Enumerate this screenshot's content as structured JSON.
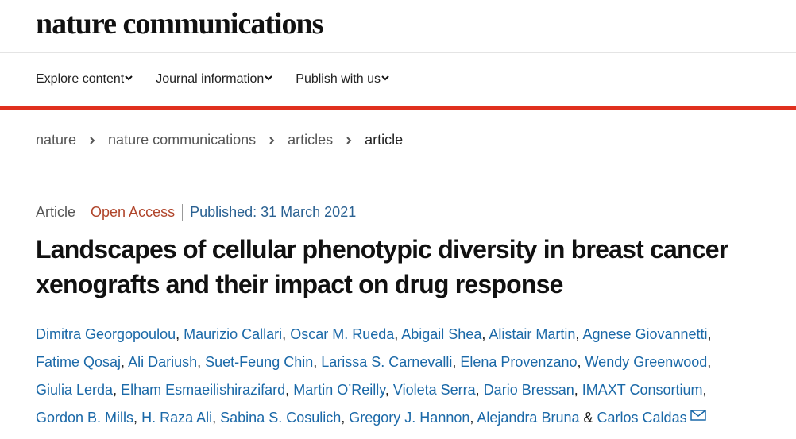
{
  "header": {
    "logo": "nature communications",
    "nav": [
      "Explore content",
      "Journal information",
      "Publish with us"
    ]
  },
  "breadcrumbs": [
    "nature",
    "nature communications",
    "articles",
    "article"
  ],
  "article": {
    "type": "Article",
    "access": "Open Access",
    "published": "Published: 31 March 2021",
    "title": "Landscapes of cellular phenotypic diversity in breast cancer xenografts and their impact on drug response",
    "authors": [
      "Dimitra Georgopoulou",
      "Maurizio Callari",
      "Oscar M. Rueda",
      "Abigail Shea",
      "Alistair Martin",
      "Agnese Giovannetti",
      "Fatime Qosaj",
      "Ali Dariush",
      "Suet-Feung Chin",
      "Larissa S. Carnevalli",
      "Elena Provenzano",
      "Wendy Greenwood",
      "Giulia Lerda",
      "Elham Esmaeilishirazifard",
      "Martin O’Reilly",
      "Violeta Serra",
      "Dario Bressan",
      "IMAXT Consortium",
      "Gordon B. Mills",
      "H. Raza Ali",
      "Sabina S. Cosulich",
      "Gregory J. Hannon",
      "Alejandra Bruna",
      "Carlos Caldas"
    ],
    "author_separator": ",",
    "last_separator": "&"
  }
}
